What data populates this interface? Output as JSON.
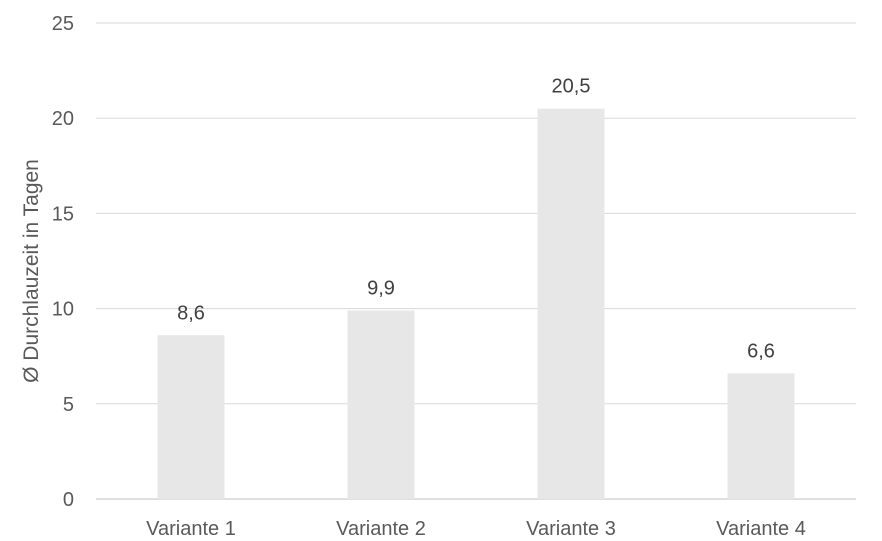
{
  "chart_data": {
    "type": "bar",
    "categories": [
      "Variante 1",
      "Variante 2",
      "Variante 3",
      "Variante 4"
    ],
    "values": [
      8.6,
      9.9,
      20.5,
      6.6
    ],
    "value_labels": [
      "8,6",
      "9,9",
      "20,5",
      "6,6"
    ],
    "ylabel": "Ø Durchlauzeit in Tagen",
    "xlabel": "",
    "ylim": [
      0,
      25
    ],
    "yticks": [
      0,
      5,
      10,
      15,
      20,
      25
    ],
    "ytick_labels": [
      "0",
      "5",
      "10",
      "15",
      "20",
      "25"
    ],
    "grid": true,
    "legend": "none",
    "colors": {
      "bar": "#e7e7e7",
      "grid": "#d9d9d9",
      "text": "#595959",
      "data_label": "#404040"
    }
  }
}
